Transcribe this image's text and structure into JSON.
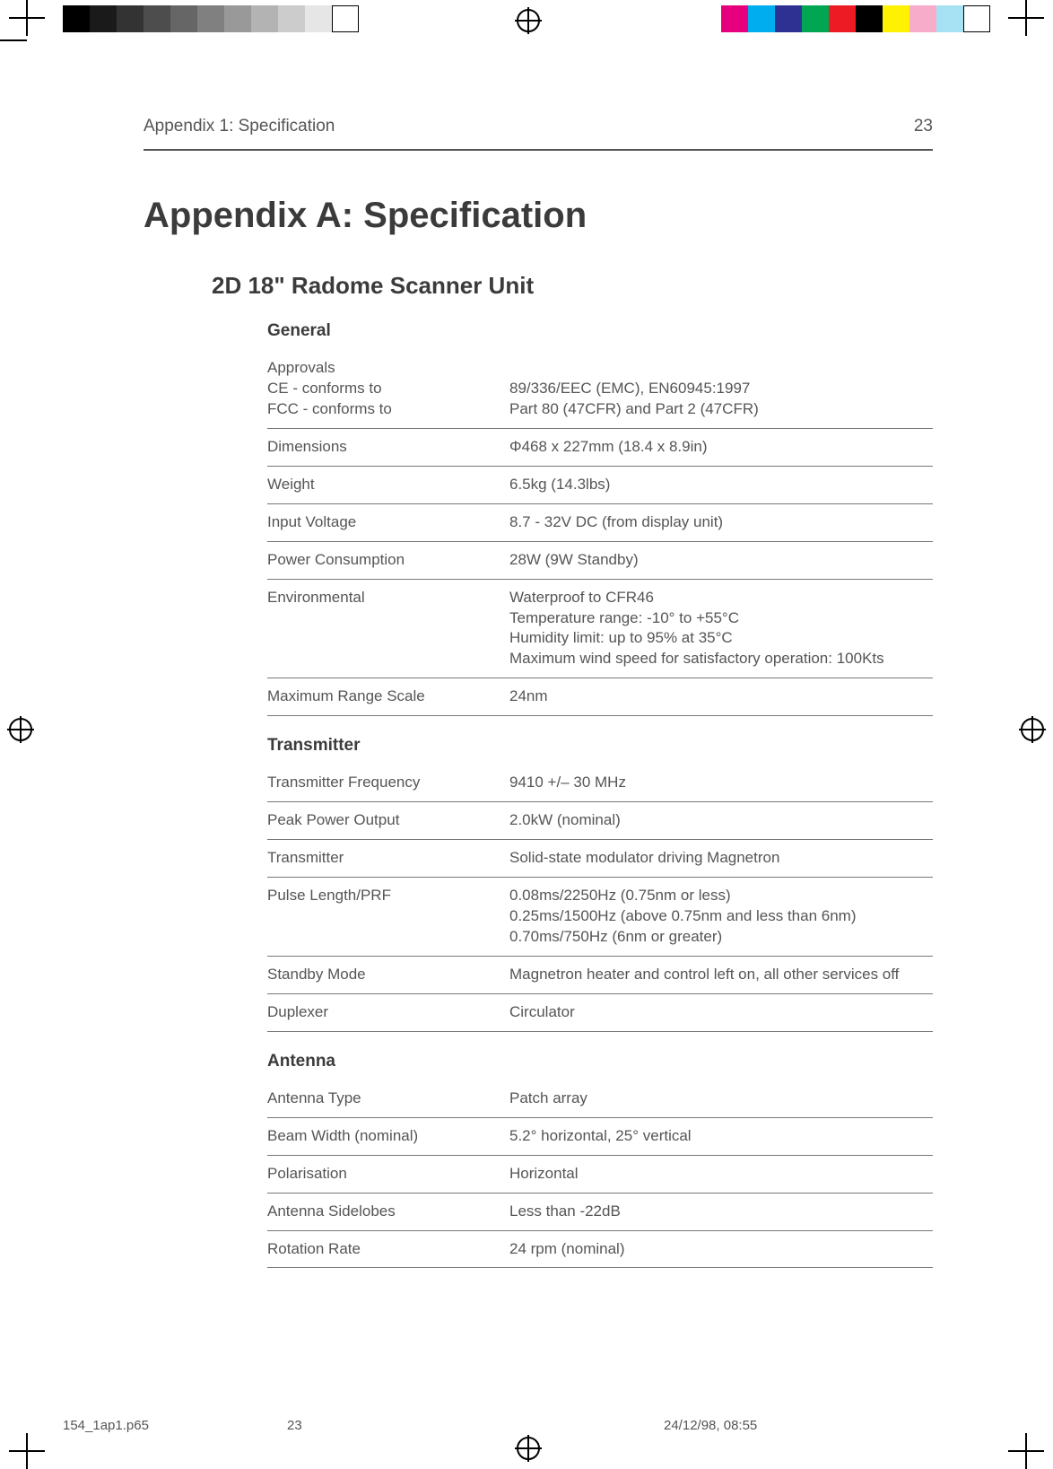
{
  "header": {
    "running": "Appendix 1: Specification",
    "pageno": "23"
  },
  "title": "Appendix A: Specification",
  "subtitle": "2D 18\" Radome Scanner Unit",
  "sections": {
    "general": {
      "heading": "General",
      "approvals_label": "Approvals",
      "ce_label": "CE - conforms to",
      "ce_value": "89/336/EEC (EMC), EN60945:1997",
      "fcc_label": "FCC - conforms to",
      "fcc_value": "Part 80 (47CFR) and Part 2 (47CFR)",
      "dim_label": "Dimensions",
      "dim_value": "Φ468 x 227mm (18.4 x 8.9in)",
      "weight_label": "Weight",
      "weight_value": "6.5kg (14.3lbs)",
      "volt_label": "Input Voltage",
      "volt_value": "8.7 - 32V DC (from display unit)",
      "power_label": "Power Consumption",
      "power_value": "28W (9W Standby)",
      "env_label": "Environmental",
      "env_l1": "Waterproof to CFR46",
      "env_l2": "Temperature range: -10° to +55°C",
      "env_l3": "Humidity limit:      up to 95% at 35°C",
      "env_l4": "Maximum wind speed for satisfactory operation: 100Kts",
      "range_label": "Maximum Range Scale",
      "range_value": "24nm"
    },
    "transmitter": {
      "heading": "Transmitter",
      "freq_label": "Transmitter Frequency",
      "freq_value": "9410 +/– 30 MHz",
      "peak_label": "Peak Power Output",
      "peak_value": "2.0kW (nominal)",
      "tx_label": "Transmitter",
      "tx_value": "Solid-state modulator driving Magnetron",
      "pulse_label": "Pulse Length/PRF",
      "pulse_l1": "0.08ms/2250Hz (0.75nm or less)",
      "pulse_l2": "0.25ms/1500Hz (above 0.75nm and less than 6nm)",
      "pulse_l3": "0.70ms/750Hz (6nm or greater)",
      "standby_label": "Standby Mode",
      "standby_value": "Magnetron heater and control left on, all other services off",
      "dup_label": "Duplexer",
      "dup_value": "Circulator"
    },
    "antenna": {
      "heading": "Antenna",
      "type_label": "Antenna Type",
      "type_value": "Patch array",
      "beam_label": "Beam Width (nominal)",
      "beam_value": "5.2° horizontal, 25° vertical",
      "pol_label": "Polarisation",
      "pol_value": "Horizontal",
      "side_label": "Antenna Sidelobes",
      "side_value": "Less than -22dB",
      "rot_label": "Rotation Rate",
      "rot_value": "24 rpm (nominal)"
    }
  },
  "footer": {
    "file": "154_1ap1.p65",
    "pageno": "23",
    "datetime": "24/12/98, 08:55"
  }
}
